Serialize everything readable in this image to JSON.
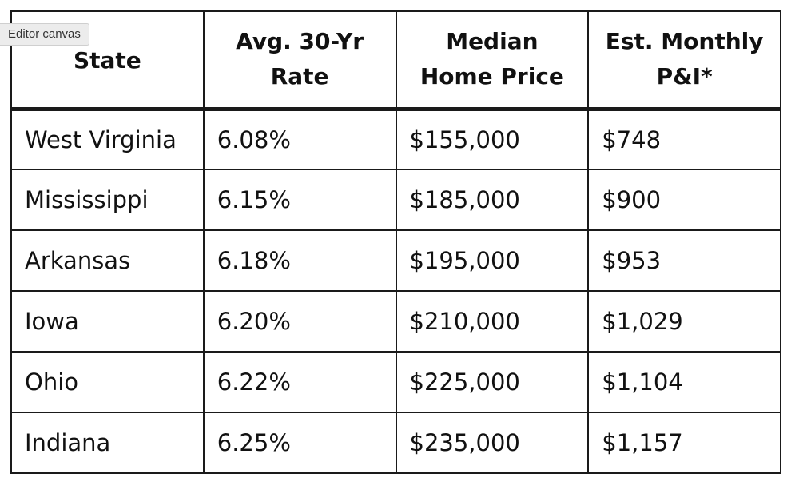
{
  "canvas_tag": "Editor canvas",
  "table": {
    "headers": [
      "State",
      "Avg. 30-Yr Rate",
      "Median Home Price",
      "Est. Monthly P&I*"
    ],
    "rows": [
      [
        "West Virginia",
        "6.08%",
        "$155,000",
        "$748"
      ],
      [
        "Mississippi",
        "6.15%",
        "$185,000",
        "$900"
      ],
      [
        "Arkansas",
        "6.18%",
        "$195,000",
        "$953"
      ],
      [
        "Iowa",
        "6.20%",
        "$210,000",
        "$1,029"
      ],
      [
        "Ohio",
        "6.22%",
        "$225,000",
        "$1,104"
      ],
      [
        "Indiana",
        "6.25%",
        "$235,000",
        "$1,157"
      ]
    ]
  }
}
